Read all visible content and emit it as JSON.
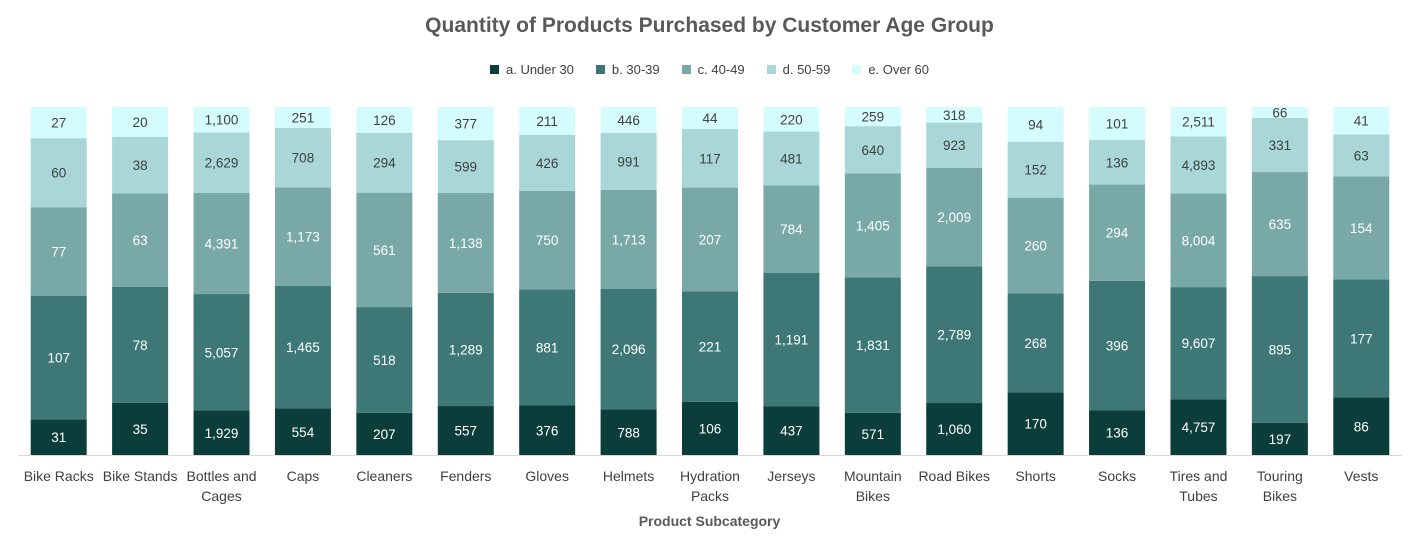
{
  "chart_data": {
    "type": "bar",
    "stacked": true,
    "title": "Quantity of Products Purchased by Customer Age Group",
    "xlabel": "Product Subcategory",
    "ylabel": "",
    "legend_position": "top",
    "grid": false,
    "categories": [
      "Bike Racks",
      "Bike Stands",
      "Bottles and Cages",
      "Caps",
      "Cleaners",
      "Fenders",
      "Gloves",
      "Helmets",
      "Hydration Packs",
      "Jerseys",
      "Mountain Bikes",
      "Road Bikes",
      "Shorts",
      "Socks",
      "Tires and Tubes",
      "Touring Bikes",
      "Vests"
    ],
    "category_display": [
      [
        "Bike Racks"
      ],
      [
        "Bike Stands"
      ],
      [
        "Bottles and",
        "Cages"
      ],
      [
        "Caps"
      ],
      [
        "Cleaners"
      ],
      [
        "Fenders"
      ],
      [
        "Gloves"
      ],
      [
        "Helmets"
      ],
      [
        "Hydration",
        "Packs"
      ],
      [
        "Jerseys"
      ],
      [
        "Mountain",
        "Bikes"
      ],
      [
        "Road Bikes"
      ],
      [
        "Shorts"
      ],
      [
        "Socks"
      ],
      [
        "Tires and",
        "Tubes"
      ],
      [
        "Touring",
        "Bikes"
      ],
      [
        "Vests"
      ]
    ],
    "series": [
      {
        "name": "a. Under 30",
        "color": "#0B3D3A",
        "label_color": "#ffffff",
        "values": [
          31,
          35,
          1929,
          554,
          207,
          557,
          376,
          788,
          106,
          437,
          571,
          1060,
          170,
          136,
          4757,
          197,
          86
        ]
      },
      {
        "name": "b. 30-39",
        "color": "#3E7876",
        "label_color": "#ffffff",
        "values": [
          107,
          78,
          5057,
          1465,
          518,
          1289,
          881,
          2096,
          221,
          1191,
          1831,
          2789,
          268,
          396,
          9607,
          895,
          177
        ]
      },
      {
        "name": "c. 40-49",
        "color": "#78A9A7",
        "label_color": "#ffffff",
        "values": [
          77,
          63,
          4391,
          1173,
          561,
          1138,
          750,
          1713,
          207,
          784,
          1405,
          2009,
          260,
          294,
          8004,
          635,
          154
        ]
      },
      {
        "name": "d. 50-59",
        "color": "#A9D6D6",
        "label_color": "#404040",
        "values": [
          60,
          38,
          2629,
          708,
          294,
          599,
          426,
          991,
          117,
          481,
          640,
          923,
          152,
          136,
          4893,
          331,
          63
        ]
      },
      {
        "name": "e. Over 60",
        "color": "#D5FCFD",
        "label_color": "#404040",
        "values": [
          27,
          20,
          1100,
          251,
          126,
          377,
          211,
          446,
          44,
          220,
          259,
          318,
          94,
          101,
          2511,
          66,
          41
        ]
      }
    ]
  }
}
